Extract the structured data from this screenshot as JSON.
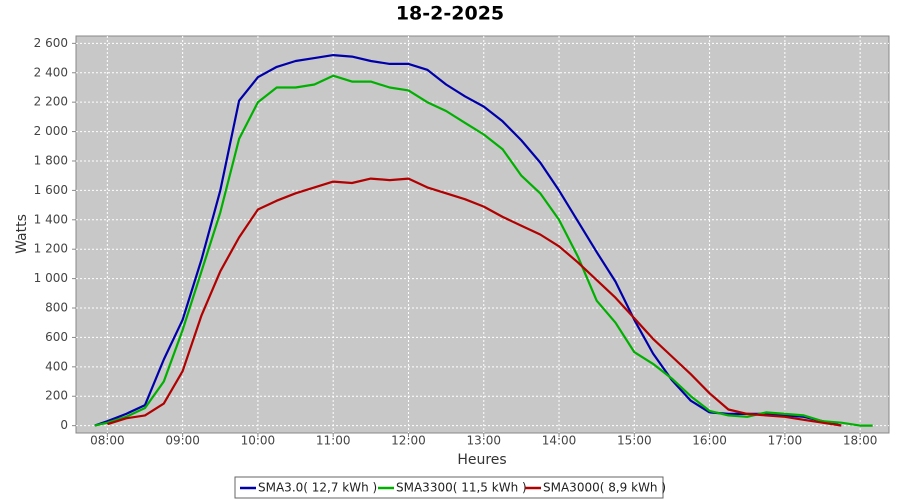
{
  "chart_data": {
    "type": "line",
    "title": "18-2-2025",
    "x_label": "Heures",
    "y_label": "Watts",
    "x": [
      "07:50",
      "08:00",
      "08:15",
      "08:30",
      "08:45",
      "09:00",
      "09:15",
      "09:30",
      "09:45",
      "10:00",
      "10:15",
      "10:30",
      "10:45",
      "11:00",
      "11:15",
      "11:30",
      "11:45",
      "12:00",
      "12:15",
      "12:30",
      "12:45",
      "13:00",
      "13:15",
      "13:30",
      "13:45",
      "14:00",
      "14:15",
      "14:30",
      "14:45",
      "15:00",
      "15:15",
      "15:30",
      "15:45",
      "16:00",
      "16:15",
      "16:30",
      "16:45",
      "17:00",
      "17:15",
      "17:30",
      "17:45",
      "18:00",
      "18:10"
    ],
    "series": [
      {
        "name": "SMA3.0( 12,7 kWh )",
        "color": "#0000aa",
        "values": [
          0,
          30,
          80,
          140,
          450,
          720,
          1130,
          1600,
          2210,
          2370,
          2440,
          2480,
          2500,
          2520,
          2510,
          2480,
          2460,
          2460,
          2420,
          2320,
          2240,
          2170,
          2070,
          1940,
          1790,
          1600,
          1390,
          1180,
          980,
          720,
          490,
          310,
          170,
          90,
          80,
          80,
          80,
          70,
          60,
          30,
          0,
          null,
          null
        ]
      },
      {
        "name": "SMA3300( 11,5 kWh )",
        "color": "#00b000",
        "values": [
          0,
          20,
          60,
          120,
          300,
          650,
          1050,
          1450,
          1950,
          2200,
          2300,
          2300,
          2320,
          2380,
          2340,
          2340,
          2300,
          2280,
          2200,
          2140,
          2060,
          1980,
          1880,
          1700,
          1580,
          1400,
          1150,
          850,
          700,
          500,
          420,
          320,
          200,
          100,
          70,
          60,
          90,
          80,
          70,
          30,
          20,
          0,
          0
        ]
      },
      {
        "name": "SMA3000( 8,9 kWh )",
        "color": "#b00000",
        "values": [
          null,
          10,
          50,
          70,
          150,
          370,
          750,
          1050,
          1280,
          1470,
          1530,
          1580,
          1620,
          1660,
          1650,
          1680,
          1670,
          1680,
          1620,
          1580,
          1540,
          1490,
          1420,
          1360,
          1300,
          1220,
          1110,
          990,
          870,
          730,
          590,
          470,
          350,
          220,
          110,
          80,
          70,
          60,
          40,
          20,
          0,
          null,
          null
        ]
      }
    ],
    "xlim": [
      "07:35",
      "18:23"
    ],
    "xticks": [
      "08:00",
      "09:00",
      "10:00",
      "11:00",
      "12:00",
      "13:00",
      "14:00",
      "15:00",
      "16:00",
      "17:00",
      "18:00"
    ],
    "ylim": [
      -50,
      2650
    ],
    "yticks": [
      0,
      200,
      400,
      600,
      800,
      {
        "value": 1000,
        "label": "1 000"
      },
      {
        "value": 1200,
        "label": "1 200"
      },
      {
        "value": 1400,
        "label": "1 400"
      },
      {
        "value": 1600,
        "label": "1 600"
      },
      {
        "value": 1800,
        "label": "1 800"
      },
      {
        "value": 2000,
        "label": "2 000"
      },
      {
        "value": 2200,
        "label": "2 200"
      },
      {
        "value": 2400,
        "label": "2 400"
      },
      {
        "value": 2600,
        "label": "2 600"
      }
    ],
    "grid": true
  }
}
